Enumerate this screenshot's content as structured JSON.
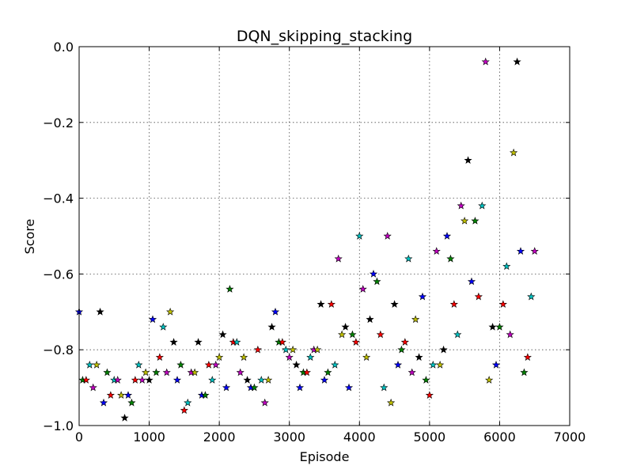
{
  "chart_data": {
    "type": "scatter",
    "title": "DQN_skipping_stacking",
    "xlabel": "Episode",
    "ylabel": "Score",
    "xlim": [
      0,
      7000
    ],
    "ylim": [
      -1.0,
      0.0
    ],
    "xticks": [
      0,
      1000,
      2000,
      3000,
      4000,
      5000,
      6000,
      7000
    ],
    "yticks": [
      0.0,
      -0.2,
      -0.4,
      -0.6,
      -0.8,
      -1.0
    ],
    "xtick_labels": [
      "0",
      "1000",
      "2000",
      "3000",
      "4000",
      "5000",
      "6000",
      "7000"
    ],
    "ytick_labels": [
      "0.0",
      "−0.2",
      "−0.4",
      "−0.6",
      "−0.8",
      "−1.0"
    ],
    "grid": true,
    "marker": "star",
    "colors": [
      "#0000ff",
      "#008000",
      "#ff0000",
      "#00bfbf",
      "#bf00bf",
      "#bfbf00",
      "#000000"
    ],
    "x": [
      0,
      50,
      100,
      150,
      200,
      250,
      300,
      350,
      400,
      450,
      500,
      550,
      600,
      650,
      700,
      750,
      800,
      850,
      900,
      950,
      1000,
      1050,
      1100,
      1150,
      1200,
      1250,
      1300,
      1350,
      1400,
      1450,
      1500,
      1550,
      1600,
      1650,
      1700,
      1750,
      1800,
      1850,
      1900,
      1950,
      2000,
      2050,
      2100,
      2150,
      2200,
      2250,
      2300,
      2350,
      2400,
      2450,
      2500,
      2550,
      2600,
      2650,
      2700,
      2750,
      2800,
      2850,
      2900,
      2950,
      3000,
      3050,
      3100,
      3150,
      3200,
      3250,
      3300,
      3350,
      3400,
      3450,
      3500,
      3550,
      3600,
      3650,
      3700,
      3750,
      3800,
      3850,
      3900,
      3950,
      4000,
      4050,
      4100,
      4150,
      4200,
      4250,
      4300,
      4350,
      4400,
      4450,
      4500,
      4550,
      4600,
      4650,
      4700,
      4750,
      4800,
      4850,
      4900,
      4950,
      5000,
      5050,
      5100,
      5150,
      5200,
      5250,
      5300,
      5350,
      5400,
      5450,
      5500,
      5550,
      5600,
      5650,
      5700,
      5750,
      5800,
      5850,
      5900,
      5950,
      6000,
      6050,
      6100,
      6150,
      6200,
      6250,
      6300,
      6350,
      6400,
      6450,
      6500
    ],
    "y": [
      -0.7,
      -0.88,
      -0.88,
      -0.84,
      -0.9,
      -0.84,
      -0.7,
      -0.94,
      -0.86,
      -0.92,
      -0.88,
      -0.88,
      -0.92,
      -0.98,
      -0.92,
      -0.94,
      -0.88,
      -0.84,
      -0.88,
      -0.86,
      -0.88,
      -0.72,
      -0.86,
      -0.82,
      -0.74,
      -0.86,
      -0.7,
      -0.78,
      -0.88,
      -0.84,
      -0.96,
      -0.94,
      -0.86,
      -0.86,
      -0.78,
      -0.92,
      -0.92,
      -0.84,
      -0.88,
      -0.84,
      -0.82,
      -0.76,
      -0.9,
      -0.64,
      -0.78,
      -0.78,
      -0.86,
      -0.82,
      -0.88,
      -0.9,
      -0.9,
      -0.8,
      -0.88,
      -0.94,
      -0.88,
      -0.74,
      -0.7,
      -0.78,
      -0.78,
      -0.8,
      -0.82,
      -0.8,
      -0.84,
      -0.9,
      -0.86,
      -0.86,
      -0.82,
      -0.8,
      -0.8,
      -0.68,
      -0.88,
      -0.86,
      -0.68,
      -0.84,
      -0.56,
      -0.76,
      -0.74,
      -0.9,
      -0.76,
      -0.78,
      -0.5,
      -0.64,
      -0.82,
      -0.72,
      -0.6,
      -0.62,
      -0.76,
      -0.9,
      -0.5,
      -0.94,
      -0.68,
      -0.84,
      -0.8,
      -0.78,
      -0.56,
      -0.86,
      -0.72,
      -0.82,
      -0.66,
      -0.88,
      -0.92,
      -0.84,
      -0.54,
      -0.84,
      -0.8,
      -0.5,
      -0.56,
      -0.68,
      -0.76,
      -0.42,
      -0.46,
      -0.3,
      -0.62,
      -0.46,
      -0.66,
      -0.42,
      -0.04,
      -0.88,
      -0.74,
      -0.84,
      -0.74,
      -0.68,
      -0.58,
      -0.76,
      -0.28,
      -0.04,
      -0.54,
      -0.86,
      -0.82,
      -0.66,
      -0.54
    ]
  }
}
